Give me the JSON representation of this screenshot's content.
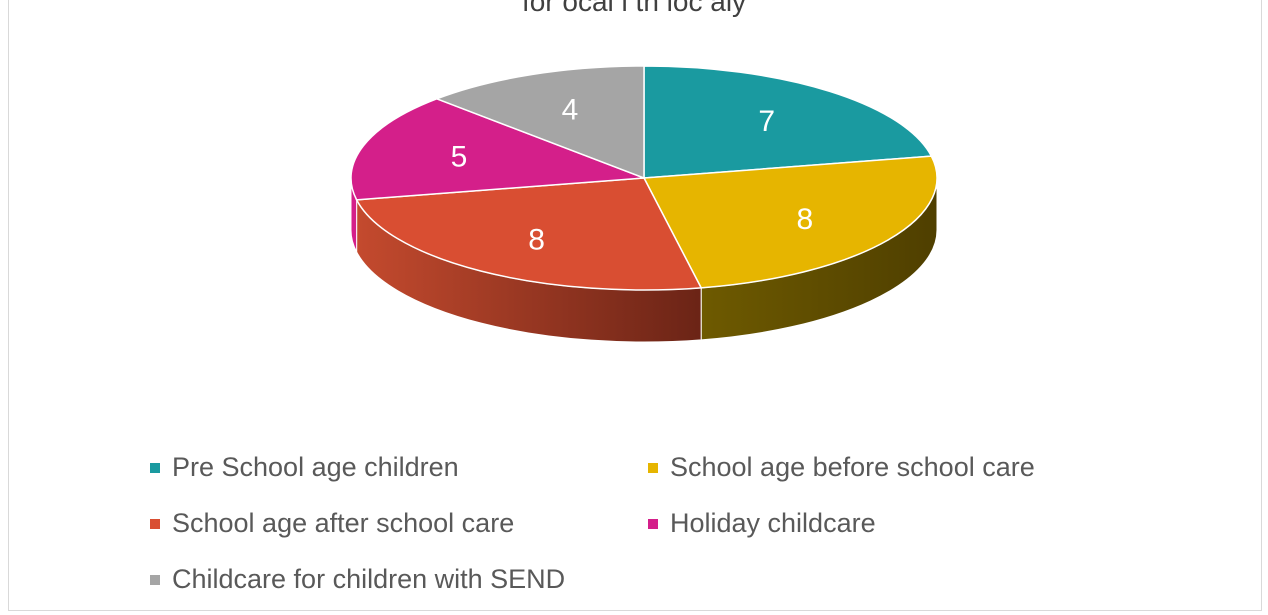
{
  "chart_data": {
    "type": "pie",
    "title": "for ocal i th loc aly",
    "slices": [
      {
        "name": "Pre School age children",
        "value": 7,
        "color": "#1a9aa0"
      },
      {
        "name": "School age before school care",
        "value": 8,
        "color": "#e6b500"
      },
      {
        "name": "School age after school care",
        "value": 8,
        "color": "#d94e32"
      },
      {
        "name": "Holiday childcare",
        "value": 5,
        "color": "#d41f8a"
      },
      {
        "name": "Childcare for children with SEND",
        "value": 4,
        "color": "#a5a5a5"
      }
    ],
    "legend_position": "bottom",
    "data_labels": true,
    "style": "3d"
  }
}
